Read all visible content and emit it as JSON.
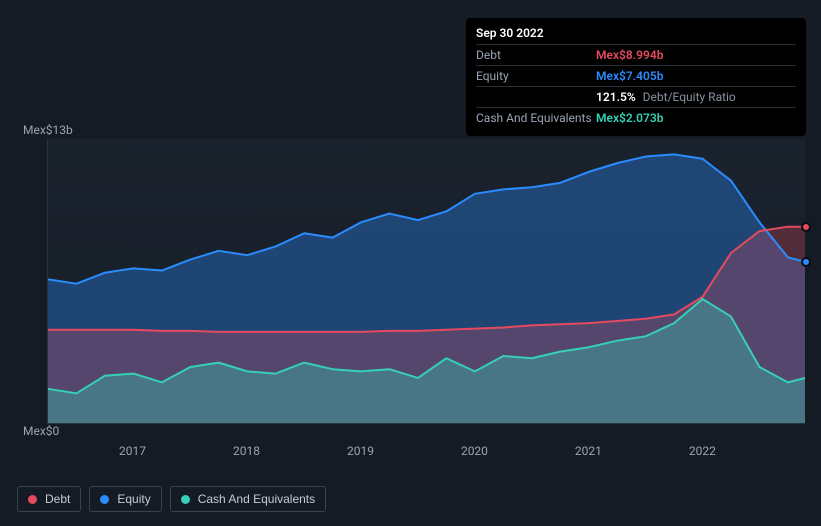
{
  "tooltip": {
    "date": "Sep 30 2022",
    "rows": {
      "debt": {
        "label": "Debt",
        "value": "Mex$8.994b",
        "class": "v-debt"
      },
      "equity": {
        "label": "Equity",
        "value": "Mex$7.405b",
        "class": "v-equity"
      },
      "ratio": {
        "label": "",
        "value": "121.5%",
        "suffix": "Debt/Equity Ratio"
      },
      "cash": {
        "label": "Cash And Equivalents",
        "value": "Mex$2.073b",
        "class": "v-cash"
      }
    }
  },
  "chart": {
    "ylim": [
      0,
      13
    ],
    "y_top_label": "Mex$13b",
    "y_bot_label": "Mex$0",
    "x_start": 2016.25,
    "x_end": 2022.9,
    "x_ticks": [
      2017,
      2018,
      2019,
      2020,
      2021,
      2022
    ],
    "colors": {
      "debt": {
        "stroke": "#e64a5e",
        "fill": "rgba(230,74,94,0.28)"
      },
      "equity": {
        "stroke": "#2a8cff",
        "fill": "rgba(42,140,255,0.35)"
      },
      "cash": {
        "stroke": "#35d0b5",
        "fill": "rgba(53,208,181,0.35)"
      },
      "baseline": "#2a3340"
    },
    "series": {
      "equity": [
        [
          2016.25,
          6.6
        ],
        [
          2016.5,
          6.4
        ],
        [
          2016.75,
          6.9
        ],
        [
          2017.0,
          7.1
        ],
        [
          2017.25,
          7.0
        ],
        [
          2017.5,
          7.5
        ],
        [
          2017.75,
          7.9
        ],
        [
          2018.0,
          7.7
        ],
        [
          2018.25,
          8.1
        ],
        [
          2018.5,
          8.7
        ],
        [
          2018.75,
          8.5
        ],
        [
          2019.0,
          9.2
        ],
        [
          2019.25,
          9.6
        ],
        [
          2019.5,
          9.3
        ],
        [
          2019.75,
          9.7
        ],
        [
          2020.0,
          10.5
        ],
        [
          2020.25,
          10.7
        ],
        [
          2020.5,
          10.8
        ],
        [
          2020.75,
          11.0
        ],
        [
          2021.0,
          11.5
        ],
        [
          2021.25,
          11.9
        ],
        [
          2021.5,
          12.2
        ],
        [
          2021.75,
          12.3
        ],
        [
          2022.0,
          12.1
        ],
        [
          2022.25,
          11.1
        ],
        [
          2022.5,
          9.2
        ],
        [
          2022.75,
          7.6
        ],
        [
          2022.9,
          7.4
        ]
      ],
      "debt": [
        [
          2016.25,
          4.3
        ],
        [
          2016.5,
          4.3
        ],
        [
          2016.75,
          4.3
        ],
        [
          2017.0,
          4.3
        ],
        [
          2017.25,
          4.25
        ],
        [
          2017.5,
          4.25
        ],
        [
          2017.75,
          4.2
        ],
        [
          2018.0,
          4.2
        ],
        [
          2018.25,
          4.2
        ],
        [
          2018.5,
          4.2
        ],
        [
          2018.75,
          4.2
        ],
        [
          2019.0,
          4.2
        ],
        [
          2019.25,
          4.25
        ],
        [
          2019.5,
          4.25
        ],
        [
          2019.75,
          4.3
        ],
        [
          2020.0,
          4.35
        ],
        [
          2020.25,
          4.4
        ],
        [
          2020.5,
          4.5
        ],
        [
          2020.75,
          4.55
        ],
        [
          2021.0,
          4.6
        ],
        [
          2021.25,
          4.7
        ],
        [
          2021.5,
          4.8
        ],
        [
          2021.75,
          5.0
        ],
        [
          2022.0,
          5.8
        ],
        [
          2022.25,
          7.8
        ],
        [
          2022.5,
          8.8
        ],
        [
          2022.75,
          9.0
        ],
        [
          2022.9,
          9.0
        ]
      ],
      "cash": [
        [
          2016.25,
          1.6
        ],
        [
          2016.5,
          1.4
        ],
        [
          2016.75,
          2.2
        ],
        [
          2017.0,
          2.3
        ],
        [
          2017.25,
          1.9
        ],
        [
          2017.5,
          2.6
        ],
        [
          2017.75,
          2.8
        ],
        [
          2018.0,
          2.4
        ],
        [
          2018.25,
          2.3
        ],
        [
          2018.5,
          2.8
        ],
        [
          2018.75,
          2.5
        ],
        [
          2019.0,
          2.4
        ],
        [
          2019.25,
          2.5
        ],
        [
          2019.5,
          2.1
        ],
        [
          2019.75,
          3.0
        ],
        [
          2020.0,
          2.4
        ],
        [
          2020.25,
          3.1
        ],
        [
          2020.5,
          3.0
        ],
        [
          2020.75,
          3.3
        ],
        [
          2021.0,
          3.5
        ],
        [
          2021.25,
          3.8
        ],
        [
          2021.5,
          4.0
        ],
        [
          2021.75,
          4.6
        ],
        [
          2022.0,
          5.7
        ],
        [
          2022.25,
          4.9
        ],
        [
          2022.5,
          2.6
        ],
        [
          2022.75,
          1.9
        ],
        [
          2022.9,
          2.1
        ]
      ]
    },
    "end_markers": [
      {
        "series": "debt",
        "color": "#e64a5e"
      },
      {
        "series": "equity",
        "color": "#2a8cff"
      }
    ]
  },
  "legend": [
    {
      "key": "debt",
      "label": "Debt",
      "swatch": "sw-debt"
    },
    {
      "key": "equity",
      "label": "Equity",
      "swatch": "sw-equity"
    },
    {
      "key": "cash",
      "label": "Cash And Equivalents",
      "swatch": "sw-cash"
    }
  ]
}
